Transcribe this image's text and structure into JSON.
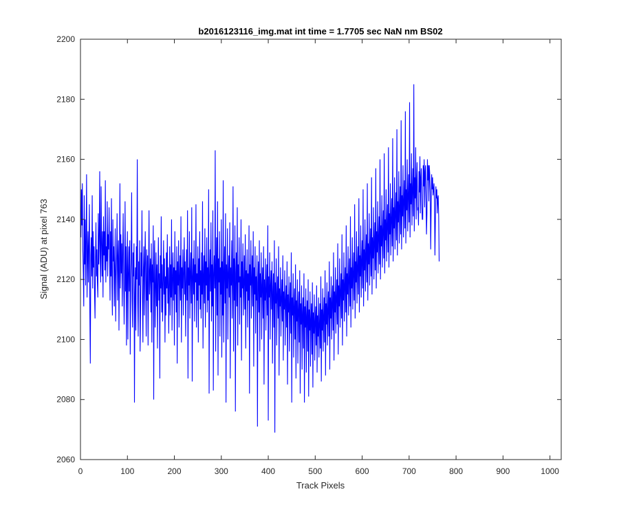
{
  "chart_data": {
    "type": "line",
    "title": "b2016123116_img.mat int time = 1.7705 sec  NaN nm BS02",
    "xlabel": "Track Pixels",
    "ylabel": "Signal (ADU) at pixel 763",
    "xlim": [
      0,
      1024
    ],
    "ylim": [
      2060,
      2200
    ],
    "x_ticks": [
      0,
      100,
      200,
      300,
      400,
      500,
      600,
      700,
      800,
      900,
      1000
    ],
    "y_ticks": [
      2060,
      2080,
      2100,
      2120,
      2140,
      2160,
      2180,
      2200
    ],
    "grid": false,
    "legend": "none",
    "series": [
      {
        "color": "#0000ff",
        "x_start": 1,
        "x_step": 1,
        "values": [
          2134,
          2150,
          2138,
          2152,
          2130,
          2122,
          2111,
          2148,
          2125,
          2140,
          2118,
          2133,
          2155,
          2114,
          2127,
          2136,
          2119,
          2132,
          2145,
          2109,
          2092,
          2128,
          2134,
          2121,
          2148,
          2117,
          2136,
          2124,
          2131,
          2115,
          2107,
          2127,
          2139,
          2121,
          2130,
          2119,
          2114,
          2142,
          2125,
          2133,
          2156,
          2127,
          2119,
          2151,
          2132,
          2121,
          2136,
          2114,
          2141,
          2128,
          2136,
          2123,
          2153,
          2119,
          2131,
          2126,
          2146,
          2121,
          2135,
          2130,
          2144,
          2128,
          2113,
          2136,
          2121,
          2147,
          2118,
          2108,
          2140,
          2126,
          2131,
          2111,
          2125,
          2137,
          2106,
          2121,
          2128,
          2142,
          2113,
          2127,
          2133,
          2103,
          2124,
          2152,
          2117,
          2135,
          2122,
          2132,
          2111,
          2128,
          2142,
          2121,
          2105,
          2119,
          2146,
          2116,
          2131,
          2098,
          2124,
          2136,
          2100,
          2122,
          2131,
          2116,
          2133,
          2095,
          2120,
          2127,
          2149,
          2113,
          2104,
          2129,
          2121,
          2132,
          2079,
          2115,
          2124,
          2103,
          2131,
          2120,
          2160,
          2112,
          2101,
          2126,
          2118,
          2133,
          2096,
          2110,
          2129,
          2121,
          2143,
          2114,
          2099,
          2123,
          2131,
          2108,
          2125,
          2136,
          2119,
          2101,
          2130,
          2113,
          2128,
          2098,
          2120,
          2143,
          2115,
          2121,
          2127,
          2109,
          2132,
          2099,
          2125,
          2119,
          2138,
          2080,
          2122,
          2133,
          2104,
          2117,
          2129,
          2111,
          2125,
          2097,
          2121,
          2134,
          2113,
          2122,
          2087,
          2128,
          2117,
          2141,
          2109,
          2125,
          2106,
          2119,
          2133,
          2115,
          2127,
          2099,
          2121,
          2108,
          2129,
          2117,
          2135,
          2112,
          2124,
          2102,
          2119,
          2131,
          2108,
          2125,
          2114,
          2140,
          2103,
          2120,
          2129,
          2113,
          2124,
          2098,
          2136,
          2115,
          2123,
          2109,
          2131,
          2092,
          2126,
          2118,
          2133,
          2104,
          2121,
          2128,
          2113,
          2141,
          2099,
          2124,
          2117,
          2130,
          2108,
          2122,
          2134,
          2115,
          2126,
          2101,
          2119,
          2130,
          2113,
          2143,
          2087,
          2124,
          2118,
          2136,
          2107,
          2122,
          2129,
          2112,
          2144,
          2086,
          2121,
          2127,
          2115,
          2133,
          2106,
          2125,
          2119,
          2145,
          2104,
          2122,
          2113,
          2131,
          2099,
          2127,
          2118,
          2136,
          2110,
          2123,
          2107,
          2129,
          2115,
          2146,
          2097,
          2121,
          2128,
          2112,
          2137,
          2104,
          2126,
          2118,
          2134,
          2109,
          2124,
          2113,
          2150,
          2082,
          2121,
          2130,
          2116,
          2139,
          2106,
          2125,
          2111,
          2143,
          2083,
          2122,
          2128,
          2117,
          2163,
          2096,
          2123,
          2134,
          2108,
          2146,
          2088,
          2127,
          2119,
          2136,
          2101,
          2124,
          2115,
          2140,
          2094,
          2126,
          2108,
          2153,
          2099,
          2121,
          2131,
          2112,
          2142,
          2079,
          2125,
          2117,
          2137,
          2100,
          2122,
          2128,
          2114,
          2139,
          2087,
          2124,
          2118,
          2133,
          2107,
          2120,
          2151,
          2096,
          2127,
          2113,
          2138,
          2076,
          2122,
          2129,
          2111,
          2144,
          2098,
          2125,
          2119,
          2134,
          2105,
          2121,
          2114,
          2140,
          2093,
          2126,
          2117,
          2132,
          2108,
          2119,
          2128,
          2110,
          2135,
          2097,
          2123,
          2116,
          2130,
          2104,
          2122,
          2113,
          2138,
          2082,
          2125,
          2118,
          2133,
          2107,
          2120,
          2128,
          2111,
          2136,
          2091,
          2124,
          2115,
          2131,
          2102,
          2121,
          2113,
          2128,
          2071,
          2119,
          2126,
          2109,
          2133,
          2096,
          2122,
          2114,
          2129,
          2100,
          2118,
          2124,
          2107,
          2131,
          2085,
          2120,
          2113,
          2127,
          2103,
          2117,
          2125,
          2108,
          2138,
          2073,
          2121,
          2114,
          2129,
          2100,
          2118,
          2123,
          2110,
          2126,
          2092,
          2116,
          2122,
          2104,
          2133,
          2069,
          2119,
          2112,
          2127,
          2098,
          2115,
          2121,
          2107,
          2131,
          2088,
          2117,
          2111,
          2124,
          2101,
          2114,
          2120,
          2106,
          2128,
          2093,
          2116,
          2110,
          2123,
          2098,
          2113,
          2118,
          2104,
          2126,
          2085,
          2115,
          2109,
          2121,
          2096,
          2112,
          2119,
          2102,
          2129,
          2079,
          2114,
          2108,
          2122,
          2094,
          2111,
          2117,
          2100,
          2125,
          2087,
          2113,
          2106,
          2120,
          2092,
          2110,
          2116,
          2099,
          2123,
          2082,
          2112,
          2105,
          2118,
          2090,
          2109,
          2114,
          2097,
          2122,
          2079,
          2111,
          2104,
          2117,
          2089,
          2108,
          2113,
          2096,
          2120,
          2081,
          2110,
          2103,
          2116,
          2091,
          2107,
          2112,
          2095,
          2119,
          2084,
          2109,
          2102,
          2115,
          2093,
          2106,
          2111,
          2098,
          2118,
          2089,
          2108,
          2101,
          2114,
          2094,
          2105,
          2112,
          2097,
          2121,
          2086,
          2110,
          2103,
          2117,
          2096,
          2108,
          2114,
          2099,
          2123,
          2088,
          2112,
          2105,
          2119,
          2098,
          2110,
          2116,
          2101,
          2126,
          2090,
          2114,
          2107,
          2121,
          2100,
          2112,
          2118,
          2103,
          2129,
          2093,
          2116,
          2109,
          2124,
          2102,
          2114,
          2120,
          2105,
          2132,
          2095,
          2118,
          2111,
          2127,
          2104,
          2116,
          2122,
          2107,
          2135,
          2098,
          2120,
          2113,
          2129,
          2106,
          2118,
          2124,
          2109,
          2138,
          2101,
          2122,
          2115,
          2131,
          2108,
          2120,
          2127,
          2111,
          2141,
          2104,
          2124,
          2117,
          2134,
          2110,
          2122,
          2129,
          2113,
          2145,
          2107,
          2126,
          2119,
          2136,
          2112,
          2124,
          2131,
          2115,
          2147,
          2109,
          2128,
          2121,
          2138,
          2114,
          2126,
          2133,
          2117,
          2150,
          2111,
          2130,
          2123,
          2140,
          2116,
          2128,
          2135,
          2119,
          2152,
          2113,
          2132,
          2125,
          2142,
          2118,
          2130,
          2137,
          2121,
          2154,
          2115,
          2134,
          2127,
          2144,
          2120,
          2132,
          2139,
          2123,
          2157,
          2117,
          2136,
          2129,
          2146,
          2122,
          2134,
          2141,
          2125,
          2160,
          2120,
          2138,
          2131,
          2148,
          2124,
          2136,
          2143,
          2127,
          2162,
          2122,
          2140,
          2133,
          2150,
          2126,
          2138,
          2145,
          2129,
          2164,
          2124,
          2142,
          2135,
          2152,
          2128,
          2140,
          2147,
          2131,
          2167,
          2126,
          2144,
          2137,
          2154,
          2130,
          2142,
          2149,
          2133,
          2170,
          2128,
          2146,
          2139,
          2156,
          2132,
          2144,
          2151,
          2135,
          2173,
          2130,
          2148,
          2141,
          2158,
          2134,
          2146,
          2153,
          2137,
          2176,
          2132,
          2150,
          2143,
          2160,
          2136,
          2148,
          2155,
          2139,
          2179,
          2134,
          2152,
          2145,
          2162,
          2138,
          2150,
          2157,
          2141,
          2185,
          2136,
          2154,
          2147,
          2164,
          2140,
          2152,
          2159,
          2143,
          2144,
          2138,
          2156,
          2149,
          2161,
          2142,
          2154,
          2157,
          2145,
          2140,
          2140,
          2158,
          2151,
          2160,
          2144,
          2156,
          2158,
          2147,
          2135,
          2142,
          2160,
          2153,
          2158,
          2146,
          2158,
          2155,
          2149,
          2130,
          2144,
          2155,
          2150,
          2154,
          2148,
          2150,
          2152,
          2145,
          2128,
          2140,
          2151,
          2147,
          2150,
          2142,
          2147,
          2148,
          2141,
          2126
        ]
      }
    ]
  }
}
